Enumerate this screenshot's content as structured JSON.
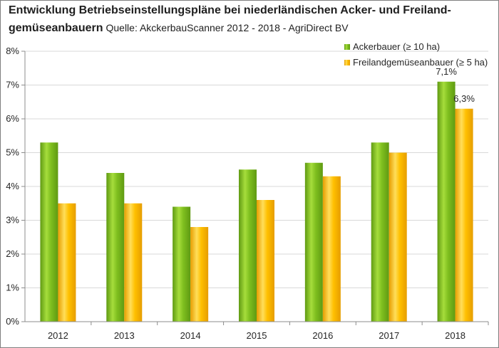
{
  "title": {
    "bold_part1": "Entwicklung Betriebseinstellungspläne bei niederländischen Acker- und Freiland-",
    "bold_part2": "gemüseanbauern",
    "source": "Quelle: AkckerbauScanner 2012 - 2018 - AgriDirect BV"
  },
  "colors": {
    "series1": "#7fbf1f",
    "series2": "#ffc000",
    "grid": "#d9d9d9",
    "axis": "#8c8c8c"
  },
  "chart_data": {
    "type": "bar",
    "categories": [
      "2012",
      "2013",
      "2014",
      "2015",
      "2016",
      "2017",
      "2018"
    ],
    "series": [
      {
        "name": "Ackerbauer (≥ 10 ha)",
        "values": [
          5.3,
          4.4,
          3.4,
          4.5,
          4.7,
          5.3,
          7.1
        ]
      },
      {
        "name": "Freilandgemüseanbauer (≥ 5 ha)",
        "values": [
          3.5,
          3.5,
          2.8,
          3.6,
          4.3,
          5.0,
          6.3
        ]
      }
    ],
    "ylim": [
      0,
      8
    ],
    "yticks": [
      "0%",
      "1%",
      "2%",
      "3%",
      "4%",
      "5%",
      "6%",
      "7%",
      "8%"
    ],
    "data_labels": [
      {
        "series": 0,
        "index": 6,
        "text": "7,1%"
      },
      {
        "series": 1,
        "index": 6,
        "text": "6,3%"
      }
    ],
    "grid": true,
    "legend_position": "top-right"
  }
}
